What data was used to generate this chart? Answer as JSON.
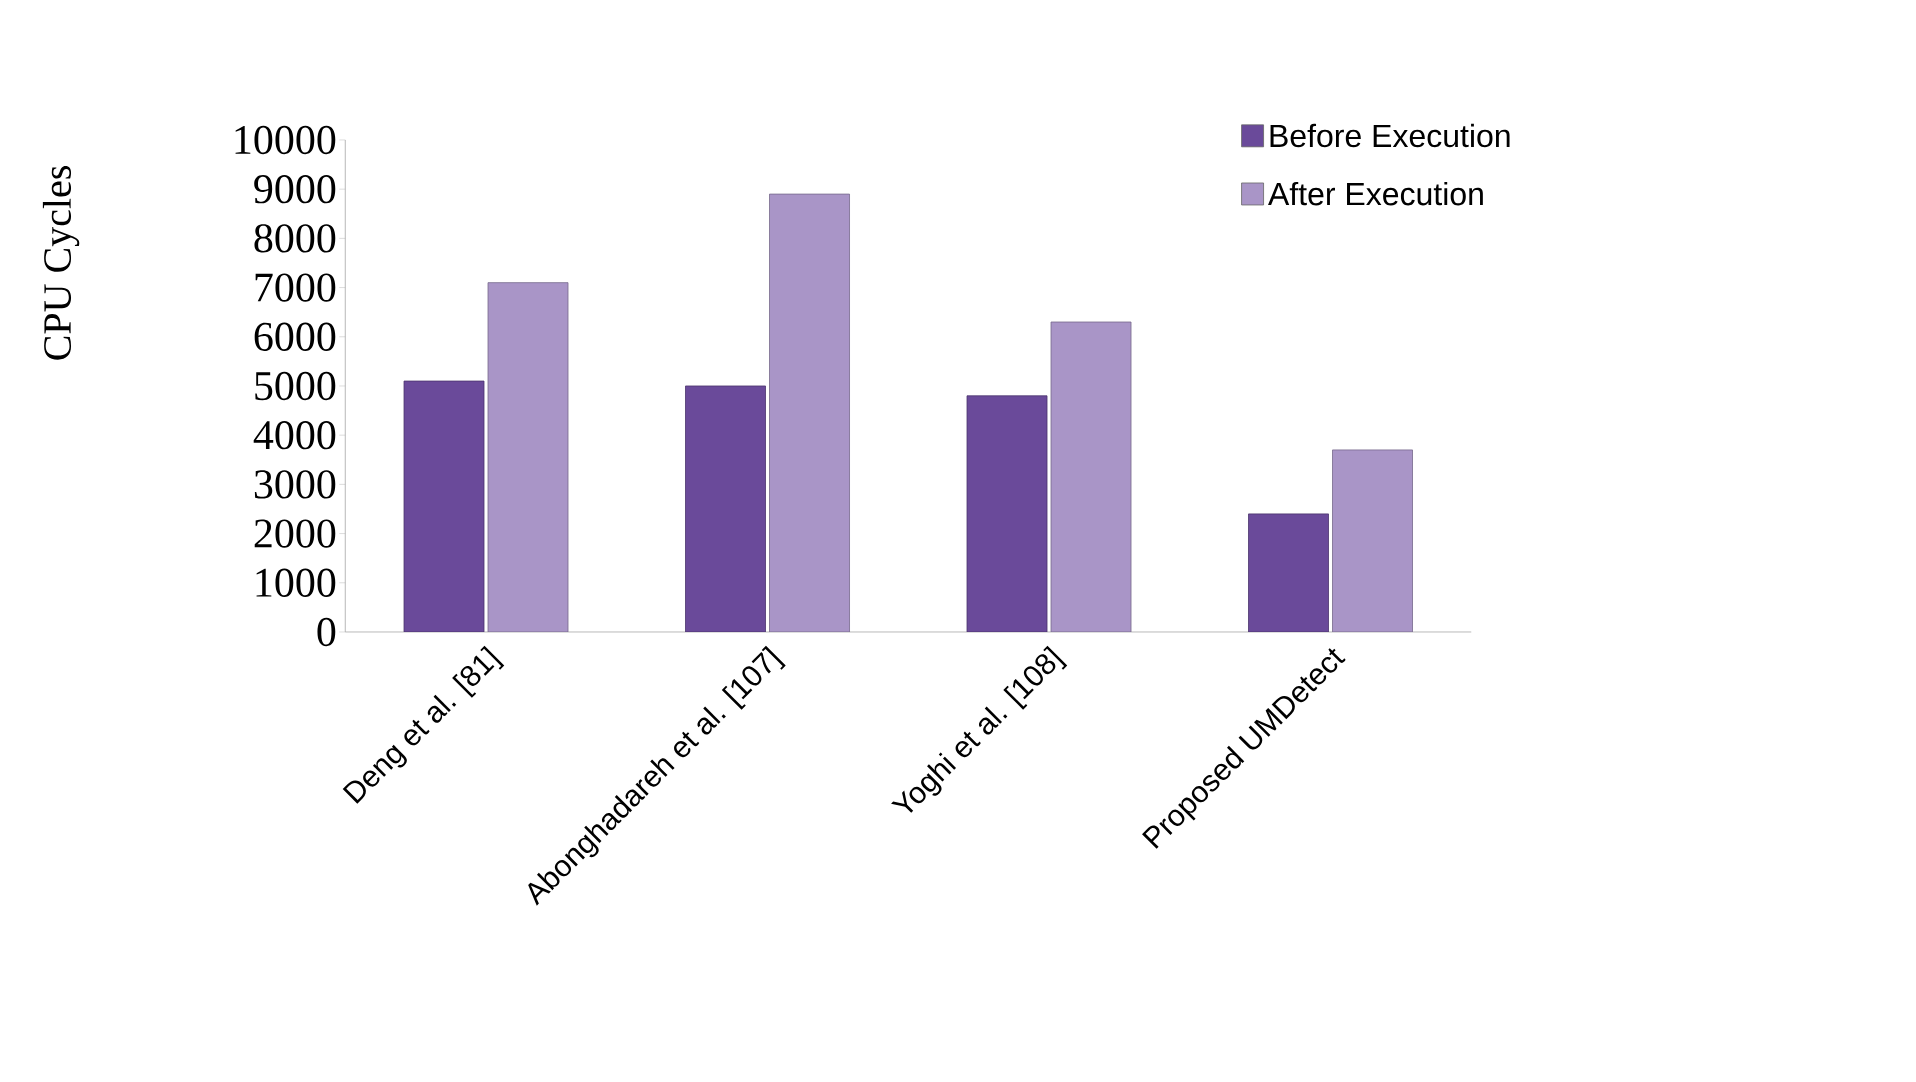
{
  "chart_data": {
    "type": "bar",
    "ylabel": "CPU Cycles",
    "categories": [
      "Deng et al. [81]",
      "Abonghadareh et al. [107]",
      "Yoghi et al. [108]",
      "Proposed UMDetect"
    ],
    "series": [
      {
        "name": "Before Execution",
        "color": "#6a4a9a",
        "values": [
          5100,
          5000,
          4800,
          2400
        ]
      },
      {
        "name": "After Execution",
        "color": "#a995c7",
        "values": [
          7100,
          8900,
          6300,
          3700
        ]
      }
    ],
    "ylim": [
      0,
      10000
    ],
    "yticks": [
      0,
      1000,
      2000,
      3000,
      4000,
      5000,
      6000,
      7000,
      8000,
      9000,
      10000
    ],
    "grid": false,
    "legend": "top right"
  }
}
